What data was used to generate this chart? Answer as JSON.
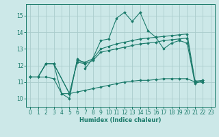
{
  "bg_color": "#cce8e8",
  "line_color": "#1a7a6a",
  "grid_color": "#aacccc",
  "xlabel": "Humidex (Indice chaleur)",
  "xlim": [
    -0.5,
    23.5
  ],
  "ylim": [
    9.5,
    15.7
  ],
  "yticks": [
    10,
    11,
    12,
    13,
    14,
    15
  ],
  "xticks": [
    0,
    1,
    2,
    3,
    4,
    5,
    6,
    7,
    8,
    9,
    10,
    11,
    12,
    13,
    14,
    15,
    16,
    17,
    18,
    19,
    20,
    21,
    22,
    23
  ],
  "lines": [
    {
      "x": [
        0,
        1,
        2,
        3,
        4,
        5,
        6,
        7,
        7,
        8,
        9,
        10,
        11,
        12,
        13,
        14,
        15,
        16,
        17,
        18,
        19,
        20,
        21,
        22
      ],
      "y": [
        11.3,
        11.3,
        12.1,
        12.1,
        10.3,
        10.0,
        12.4,
        12.1,
        11.8,
        12.45,
        13.5,
        13.6,
        14.85,
        15.2,
        14.65,
        15.2,
        14.1,
        13.7,
        13.0,
        13.35,
        13.5,
        13.35,
        10.9,
        11.1
      ]
    },
    {
      "x": [
        0,
        1,
        2,
        3,
        5,
        6,
        7,
        8,
        9,
        10,
        11,
        12,
        13,
        14,
        15,
        16,
        17,
        18,
        19,
        20,
        21,
        22
      ],
      "y": [
        11.3,
        11.3,
        12.1,
        12.1,
        10.3,
        12.3,
        12.2,
        12.4,
        13.0,
        13.15,
        13.3,
        13.4,
        13.5,
        13.6,
        13.65,
        13.7,
        13.75,
        13.8,
        13.85,
        13.9,
        11.05,
        11.1
      ]
    },
    {
      "x": [
        0,
        1,
        2,
        3,
        5,
        6,
        7,
        8,
        9,
        10,
        11,
        12,
        13,
        14,
        15,
        16,
        17,
        18,
        19,
        20,
        21,
        22
      ],
      "y": [
        11.3,
        11.3,
        12.1,
        12.1,
        10.3,
        12.2,
        12.1,
        12.3,
        12.8,
        12.9,
        13.0,
        13.1,
        13.2,
        13.3,
        13.35,
        13.4,
        13.5,
        13.55,
        13.6,
        13.65,
        11.0,
        11.0
      ]
    },
    {
      "x": [
        0,
        1,
        2,
        3,
        4,
        5,
        6,
        7,
        8,
        9,
        10,
        11,
        12,
        13,
        14,
        15,
        16,
        17,
        18,
        19,
        20,
        21,
        22
      ],
      "y": [
        11.3,
        11.3,
        11.3,
        11.2,
        10.3,
        10.3,
        10.4,
        10.5,
        10.6,
        10.7,
        10.8,
        10.9,
        11.0,
        11.05,
        11.1,
        11.1,
        11.15,
        11.2,
        11.2,
        11.2,
        11.2,
        11.0,
        11.0
      ]
    }
  ]
}
